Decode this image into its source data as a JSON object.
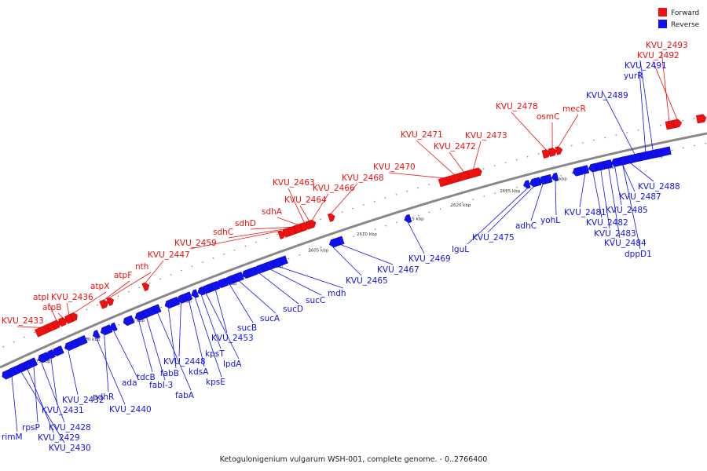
{
  "caption": "Ketogulonigenium vulgarum WSH-001, complete genome. - 0..2766400",
  "legend": [
    {
      "label": "Forward",
      "color": "#ee1111"
    },
    {
      "label": "Reverse",
      "color": "#1111ee"
    }
  ],
  "colors": {
    "forward": "#ee1111",
    "reverse": "#1111ee",
    "backbone": "#888888"
  },
  "kbp_marks": [
    "2575 kbp",
    "2580 kbp",
    "2585 kbp",
    "2590 kbp",
    "2595 kbp",
    "2600 kbp",
    "2605 kbp",
    "2610 kbp",
    "2615 kbp",
    "2620 kbp",
    "2625 kbp",
    "2630 kbp",
    "2635 kbp",
    "2640 kbp"
  ],
  "genes": [
    {
      "label": "KVU_2433",
      "strand": "forward"
    },
    {
      "label": "atpI",
      "strand": "forward"
    },
    {
      "label": "atpB",
      "strand": "forward"
    },
    {
      "label": "KVU_2436",
      "strand": "forward"
    },
    {
      "label": "atpX",
      "strand": "forward"
    },
    {
      "label": "atpF",
      "strand": "forward"
    },
    {
      "label": "nth",
      "strand": "forward"
    },
    {
      "label": "KVU_2447",
      "strand": "forward"
    },
    {
      "label": "KVU_2459",
      "strand": "forward"
    },
    {
      "label": "sdhC",
      "strand": "forward"
    },
    {
      "label": "sdhD",
      "strand": "forward"
    },
    {
      "label": "sdhA",
      "strand": "forward"
    },
    {
      "label": "KVU_2463",
      "strand": "forward"
    },
    {
      "label": "KVU_2464",
      "strand": "forward"
    },
    {
      "label": "KVU_2466",
      "strand": "forward"
    },
    {
      "label": "KVU_2468",
      "strand": "forward"
    },
    {
      "label": "KVU_2470",
      "strand": "forward"
    },
    {
      "label": "KVU_2471",
      "strand": "forward"
    },
    {
      "label": "KVU_2472",
      "strand": "forward"
    },
    {
      "label": "KVU_2473",
      "strand": "forward"
    },
    {
      "label": "KVU_2478",
      "strand": "forward"
    },
    {
      "label": "osmC",
      "strand": "forward"
    },
    {
      "label": "mecR",
      "strand": "forward"
    },
    {
      "label": "KVU_2493",
      "strand": "forward"
    },
    {
      "label": "KVU_2492",
      "strand": "forward"
    },
    {
      "label": "KVU_2491",
      "strand": "reverse"
    },
    {
      "label": "yurR",
      "strand": "reverse"
    },
    {
      "label": "KVU_2489",
      "strand": "reverse"
    },
    {
      "label": "KVU_2488",
      "strand": "reverse"
    },
    {
      "label": "KVU_2487",
      "strand": "reverse"
    },
    {
      "label": "KVU_2485",
      "strand": "reverse"
    },
    {
      "label": "KVU_2481",
      "strand": "reverse"
    },
    {
      "label": "KVU_2482",
      "strand": "reverse"
    },
    {
      "label": "KVU_2483",
      "strand": "reverse"
    },
    {
      "label": "KVU_2484",
      "strand": "reverse"
    },
    {
      "label": "dppD1",
      "strand": "reverse"
    },
    {
      "label": "yohL",
      "strand": "reverse"
    },
    {
      "label": "adhC",
      "strand": "reverse"
    },
    {
      "label": "KVU_2475",
      "strand": "reverse"
    },
    {
      "label": "lguL",
      "strand": "reverse"
    },
    {
      "label": "KVU_2469",
      "strand": "reverse"
    },
    {
      "label": "KVU_2467",
      "strand": "reverse"
    },
    {
      "label": "KVU_2465",
      "strand": "reverse"
    },
    {
      "label": "mdh",
      "strand": "reverse"
    },
    {
      "label": "sucC",
      "strand": "reverse"
    },
    {
      "label": "sucD",
      "strand": "reverse"
    },
    {
      "label": "sucA",
      "strand": "reverse"
    },
    {
      "label": "sucB",
      "strand": "reverse"
    },
    {
      "label": "KVU_2453",
      "strand": "reverse"
    },
    {
      "label": "lpdA",
      "strand": "reverse"
    },
    {
      "label": "kpsT",
      "strand": "reverse"
    },
    {
      "label": "kpsE",
      "strand": "reverse"
    },
    {
      "label": "kdsA",
      "strand": "reverse"
    },
    {
      "label": "KVU_2448",
      "strand": "reverse"
    },
    {
      "label": "fabB",
      "strand": "reverse"
    },
    {
      "label": "fabA",
      "strand": "reverse"
    },
    {
      "label": "fabI-3",
      "strand": "reverse"
    },
    {
      "label": "tdcB",
      "strand": "reverse"
    },
    {
      "label": "ada",
      "strand": "reverse"
    },
    {
      "label": "pdhR",
      "strand": "reverse"
    },
    {
      "label": "KVU_2440",
      "strand": "reverse"
    },
    {
      "label": "KVU_2432",
      "strand": "reverse"
    },
    {
      "label": "KVU_2431",
      "strand": "reverse"
    },
    {
      "label": "KVU_2428",
      "strand": "reverse"
    },
    {
      "label": "rpsP",
      "strand": "reverse"
    },
    {
      "label": "KVU_2429",
      "strand": "reverse"
    },
    {
      "label": "KVU_2430",
      "strand": "reverse"
    },
    {
      "label": "rimM",
      "strand": "reverse"
    }
  ]
}
